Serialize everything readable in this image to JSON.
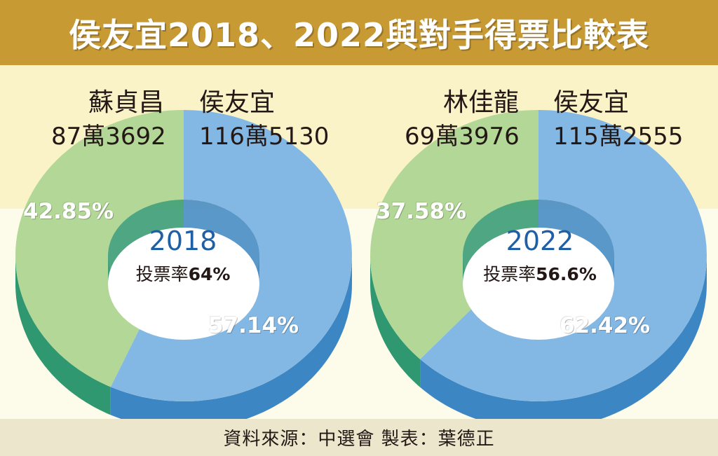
{
  "title": "侯友宜2018、2022與對手得票比較表",
  "source": "資料來源：中選會 製表：葉德正",
  "colors": {
    "header_bg": "#c89a34",
    "hou_blue_top": "#84b8e4",
    "hou_blue_side": "#3d86c4",
    "opp_green_top": "#b2d796",
    "opp_green_side": "#2f9870",
    "year_text": "#1f5fa5"
  },
  "chart_data": [
    {
      "type": "pie",
      "variant": "donut-3d",
      "year_label": "2018",
      "turnout_prefix": "投票率",
      "turnout_value": "64%",
      "slices": [
        {
          "candidate": "侯友宜",
          "votes_text": "116萬5130",
          "votes": 1165130,
          "percent": 57.14,
          "percent_label": "57.14%",
          "color": "#84b8e4"
        },
        {
          "candidate": "蘇貞昌",
          "votes_text": "87萬3692",
          "votes": 873692,
          "percent": 42.85,
          "percent_label": "42.85%",
          "color": "#b2d796"
        }
      ]
    },
    {
      "type": "pie",
      "variant": "donut-3d",
      "year_label": "2022",
      "turnout_prefix": "投票率",
      "turnout_value": "56.6%",
      "slices": [
        {
          "candidate": "侯友宜",
          "votes_text": "115萬2555",
          "votes": 1152555,
          "percent": 62.42,
          "percent_label": "62.42%",
          "color": "#84b8e4"
        },
        {
          "candidate": "林佳龍",
          "votes_text": "69萬3976",
          "votes": 693976,
          "percent": 37.58,
          "percent_label": "37.58%",
          "color": "#b2d796"
        }
      ]
    }
  ]
}
